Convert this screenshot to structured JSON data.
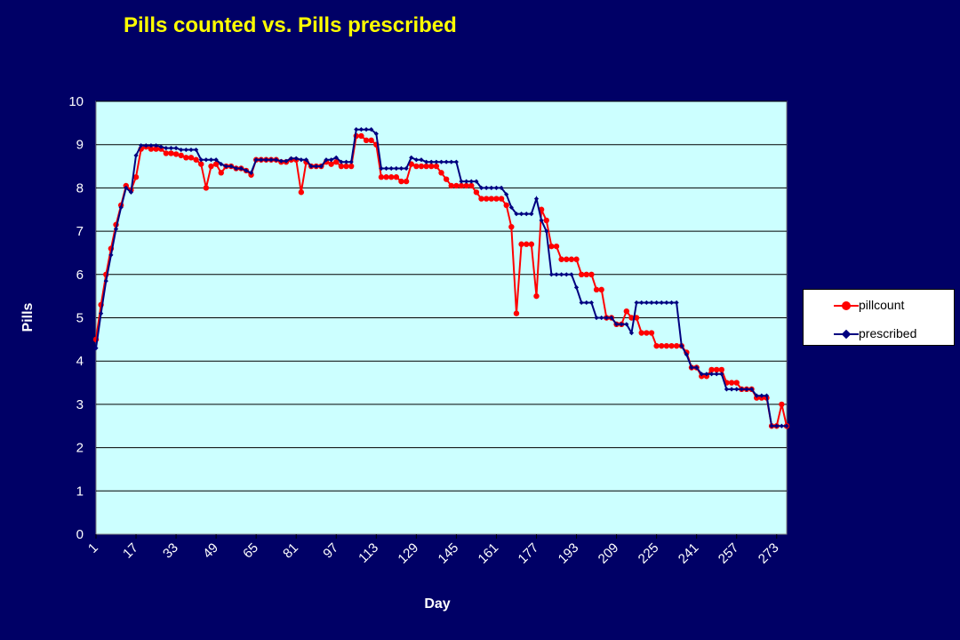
{
  "chart_data": {
    "type": "line",
    "title": "Pills counted vs. Pills prescribed",
    "xlabel": "Day",
    "ylabel": "Pills",
    "ylim": [
      0,
      10
    ],
    "yticks": [
      "0",
      "1",
      "2",
      "3",
      "4",
      "5",
      "6",
      "7",
      "8",
      "9",
      "10"
    ],
    "xticks": [
      "1",
      "17",
      "33",
      "49",
      "65",
      "81",
      "97",
      "113",
      "129",
      "145",
      "161",
      "177",
      "193",
      "209",
      "225",
      "241",
      "257",
      "273"
    ],
    "xlim": [
      1,
      277
    ],
    "grid": true,
    "legend_position": "right",
    "plot_background": "#ccffff",
    "page_background": "#000066",
    "series": [
      {
        "name": "pillcount",
        "color": "#ff0000",
        "marker": "circle",
        "points": [
          [
            1,
            4.5
          ],
          [
            3,
            5.3
          ],
          [
            5,
            6.0
          ],
          [
            7,
            6.6
          ],
          [
            9,
            7.15
          ],
          [
            11,
            7.6
          ],
          [
            13,
            8.05
          ],
          [
            15,
            7.95
          ],
          [
            17,
            8.25
          ],
          [
            19,
            8.9
          ],
          [
            21,
            8.95
          ],
          [
            23,
            8.9
          ],
          [
            25,
            8.9
          ],
          [
            27,
            8.9
          ],
          [
            29,
            8.8
          ],
          [
            31,
            8.8
          ],
          [
            33,
            8.78
          ],
          [
            35,
            8.75
          ],
          [
            37,
            8.7
          ],
          [
            39,
            8.7
          ],
          [
            41,
            8.65
          ],
          [
            43,
            8.55
          ],
          [
            45,
            8.0
          ],
          [
            47,
            8.5
          ],
          [
            49,
            8.55
          ],
          [
            51,
            8.35
          ],
          [
            53,
            8.5
          ],
          [
            55,
            8.5
          ],
          [
            57,
            8.45
          ],
          [
            59,
            8.45
          ],
          [
            61,
            8.4
          ],
          [
            63,
            8.3
          ],
          [
            65,
            8.65
          ],
          [
            67,
            8.65
          ],
          [
            69,
            8.65
          ],
          [
            71,
            8.65
          ],
          [
            73,
            8.65
          ],
          [
            75,
            8.6
          ],
          [
            77,
            8.6
          ],
          [
            79,
            8.65
          ],
          [
            81,
            8.65
          ],
          [
            83,
            7.9
          ],
          [
            85,
            8.6
          ],
          [
            87,
            8.5
          ],
          [
            89,
            8.5
          ],
          [
            91,
            8.5
          ],
          [
            93,
            8.6
          ],
          [
            95,
            8.55
          ],
          [
            97,
            8.6
          ],
          [
            99,
            8.5
          ],
          [
            101,
            8.5
          ],
          [
            103,
            8.5
          ],
          [
            105,
            9.2
          ],
          [
            107,
            9.2
          ],
          [
            109,
            9.1
          ],
          [
            111,
            9.1
          ],
          [
            113,
            9.0
          ],
          [
            115,
            8.25
          ],
          [
            117,
            8.25
          ],
          [
            119,
            8.25
          ],
          [
            121,
            8.25
          ],
          [
            123,
            8.15
          ],
          [
            125,
            8.15
          ],
          [
            127,
            8.55
          ],
          [
            129,
            8.5
          ],
          [
            131,
            8.5
          ],
          [
            133,
            8.5
          ],
          [
            135,
            8.5
          ],
          [
            137,
            8.5
          ],
          [
            139,
            8.35
          ],
          [
            141,
            8.2
          ],
          [
            143,
            8.05
          ],
          [
            145,
            8.05
          ],
          [
            147,
            8.05
          ],
          [
            149,
            8.05
          ],
          [
            151,
            8.05
          ],
          [
            153,
            7.9
          ],
          [
            155,
            7.75
          ],
          [
            157,
            7.75
          ],
          [
            159,
            7.75
          ],
          [
            161,
            7.75
          ],
          [
            163,
            7.75
          ],
          [
            165,
            7.6
          ],
          [
            167,
            7.1
          ],
          [
            169,
            5.1
          ],
          [
            171,
            6.7
          ],
          [
            173,
            6.7
          ],
          [
            175,
            6.7
          ],
          [
            177,
            5.5
          ],
          [
            179,
            7.5
          ],
          [
            181,
            7.25
          ],
          [
            183,
            6.65
          ],
          [
            185,
            6.65
          ],
          [
            187,
            6.35
          ],
          [
            189,
            6.35
          ],
          [
            191,
            6.35
          ],
          [
            193,
            6.35
          ],
          [
            195,
            6.0
          ],
          [
            197,
            6.0
          ],
          [
            199,
            6.0
          ],
          [
            201,
            5.65
          ],
          [
            203,
            5.65
          ],
          [
            205,
            5.0
          ],
          [
            207,
            5.0
          ],
          [
            209,
            4.85
          ],
          [
            211,
            4.85
          ],
          [
            213,
            5.15
          ],
          [
            215,
            5.0
          ],
          [
            217,
            5.0
          ],
          [
            219,
            4.65
          ],
          [
            221,
            4.65
          ],
          [
            223,
            4.65
          ],
          [
            225,
            4.35
          ],
          [
            227,
            4.35
          ],
          [
            229,
            4.35
          ],
          [
            231,
            4.35
          ],
          [
            233,
            4.35
          ],
          [
            235,
            4.35
          ],
          [
            237,
            4.2
          ],
          [
            239,
            3.85
          ],
          [
            241,
            3.85
          ],
          [
            243,
            3.65
          ],
          [
            245,
            3.65
          ],
          [
            247,
            3.8
          ],
          [
            249,
            3.8
          ],
          [
            251,
            3.8
          ],
          [
            253,
            3.5
          ],
          [
            255,
            3.5
          ],
          [
            257,
            3.5
          ],
          [
            259,
            3.35
          ],
          [
            261,
            3.35
          ],
          [
            263,
            3.35
          ],
          [
            265,
            3.15
          ],
          [
            267,
            3.15
          ],
          [
            269,
            3.15
          ],
          [
            271,
            2.5
          ],
          [
            273,
            2.5
          ],
          [
            275,
            3.0
          ],
          [
            277,
            2.5
          ],
          [
            279,
            2.5
          ]
        ]
      },
      {
        "name": "prescribed",
        "color": "#000080",
        "marker": "diamond",
        "points": [
          [
            1,
            4.3
          ],
          [
            3,
            5.1
          ],
          [
            5,
            5.85
          ],
          [
            7,
            6.45
          ],
          [
            9,
            7.05
          ],
          [
            11,
            7.55
          ],
          [
            13,
            8.0
          ],
          [
            15,
            7.9
          ],
          [
            17,
            8.75
          ],
          [
            19,
            8.98
          ],
          [
            21,
            8.98
          ],
          [
            23,
            8.98
          ],
          [
            25,
            8.98
          ],
          [
            27,
            8.95
          ],
          [
            29,
            8.92
          ],
          [
            31,
            8.92
          ],
          [
            33,
            8.92
          ],
          [
            35,
            8.88
          ],
          [
            37,
            8.88
          ],
          [
            39,
            8.88
          ],
          [
            41,
            8.88
          ],
          [
            43,
            8.65
          ],
          [
            45,
            8.65
          ],
          [
            47,
            8.65
          ],
          [
            49,
            8.65
          ],
          [
            51,
            8.55
          ],
          [
            53,
            8.5
          ],
          [
            55,
            8.5
          ],
          [
            57,
            8.45
          ],
          [
            59,
            8.45
          ],
          [
            61,
            8.4
          ],
          [
            63,
            8.35
          ],
          [
            65,
            8.65
          ],
          [
            67,
            8.65
          ],
          [
            69,
            8.65
          ],
          [
            71,
            8.65
          ],
          [
            73,
            8.65
          ],
          [
            75,
            8.62
          ],
          [
            77,
            8.62
          ],
          [
            79,
            8.68
          ],
          [
            81,
            8.68
          ],
          [
            83,
            8.65
          ],
          [
            85,
            8.65
          ],
          [
            87,
            8.5
          ],
          [
            89,
            8.5
          ],
          [
            91,
            8.5
          ],
          [
            93,
            8.65
          ],
          [
            95,
            8.65
          ],
          [
            97,
            8.7
          ],
          [
            99,
            8.6
          ],
          [
            101,
            8.6
          ],
          [
            103,
            8.6
          ],
          [
            105,
            9.35
          ],
          [
            107,
            9.35
          ],
          [
            109,
            9.35
          ],
          [
            111,
            9.35
          ],
          [
            113,
            9.25
          ],
          [
            115,
            8.45
          ],
          [
            117,
            8.45
          ],
          [
            119,
            8.45
          ],
          [
            121,
            8.45
          ],
          [
            123,
            8.45
          ],
          [
            125,
            8.45
          ],
          [
            127,
            8.7
          ],
          [
            129,
            8.65
          ],
          [
            131,
            8.65
          ],
          [
            133,
            8.6
          ],
          [
            135,
            8.6
          ],
          [
            137,
            8.6
          ],
          [
            139,
            8.6
          ],
          [
            141,
            8.6
          ],
          [
            143,
            8.6
          ],
          [
            145,
            8.6
          ],
          [
            147,
            8.15
          ],
          [
            149,
            8.15
          ],
          [
            151,
            8.15
          ],
          [
            153,
            8.15
          ],
          [
            155,
            8.0
          ],
          [
            157,
            8.0
          ],
          [
            159,
            8.0
          ],
          [
            161,
            8.0
          ],
          [
            163,
            8.0
          ],
          [
            165,
            7.85
          ],
          [
            167,
            7.55
          ],
          [
            169,
            7.4
          ],
          [
            171,
            7.4
          ],
          [
            173,
            7.4
          ],
          [
            175,
            7.4
          ],
          [
            177,
            7.75
          ],
          [
            179,
            7.25
          ],
          [
            181,
            7.0
          ],
          [
            183,
            6.0
          ],
          [
            185,
            6.0
          ],
          [
            187,
            6.0
          ],
          [
            189,
            6.0
          ],
          [
            191,
            6.0
          ],
          [
            193,
            5.7
          ],
          [
            195,
            5.35
          ],
          [
            197,
            5.35
          ],
          [
            199,
            5.35
          ],
          [
            201,
            5.0
          ],
          [
            203,
            5.0
          ],
          [
            205,
            5.0
          ],
          [
            207,
            5.0
          ],
          [
            209,
            4.85
          ],
          [
            211,
            4.85
          ],
          [
            213,
            4.85
          ],
          [
            215,
            4.65
          ],
          [
            217,
            5.35
          ],
          [
            219,
            5.35
          ],
          [
            221,
            5.35
          ],
          [
            223,
            5.35
          ],
          [
            225,
            5.35
          ],
          [
            227,
            5.35
          ],
          [
            229,
            5.35
          ],
          [
            231,
            5.35
          ],
          [
            233,
            5.35
          ],
          [
            235,
            4.35
          ],
          [
            237,
            4.15
          ],
          [
            239,
            3.85
          ],
          [
            241,
            3.85
          ],
          [
            243,
            3.7
          ],
          [
            245,
            3.7
          ],
          [
            247,
            3.7
          ],
          [
            249,
            3.7
          ],
          [
            251,
            3.7
          ],
          [
            253,
            3.35
          ],
          [
            255,
            3.35
          ],
          [
            257,
            3.35
          ],
          [
            259,
            3.35
          ],
          [
            261,
            3.35
          ],
          [
            263,
            3.35
          ],
          [
            265,
            3.2
          ],
          [
            267,
            3.2
          ],
          [
            269,
            3.2
          ],
          [
            271,
            2.5
          ],
          [
            273,
            2.5
          ],
          [
            275,
            2.5
          ],
          [
            277,
            2.5
          ],
          [
            279,
            2.5
          ]
        ]
      }
    ]
  }
}
